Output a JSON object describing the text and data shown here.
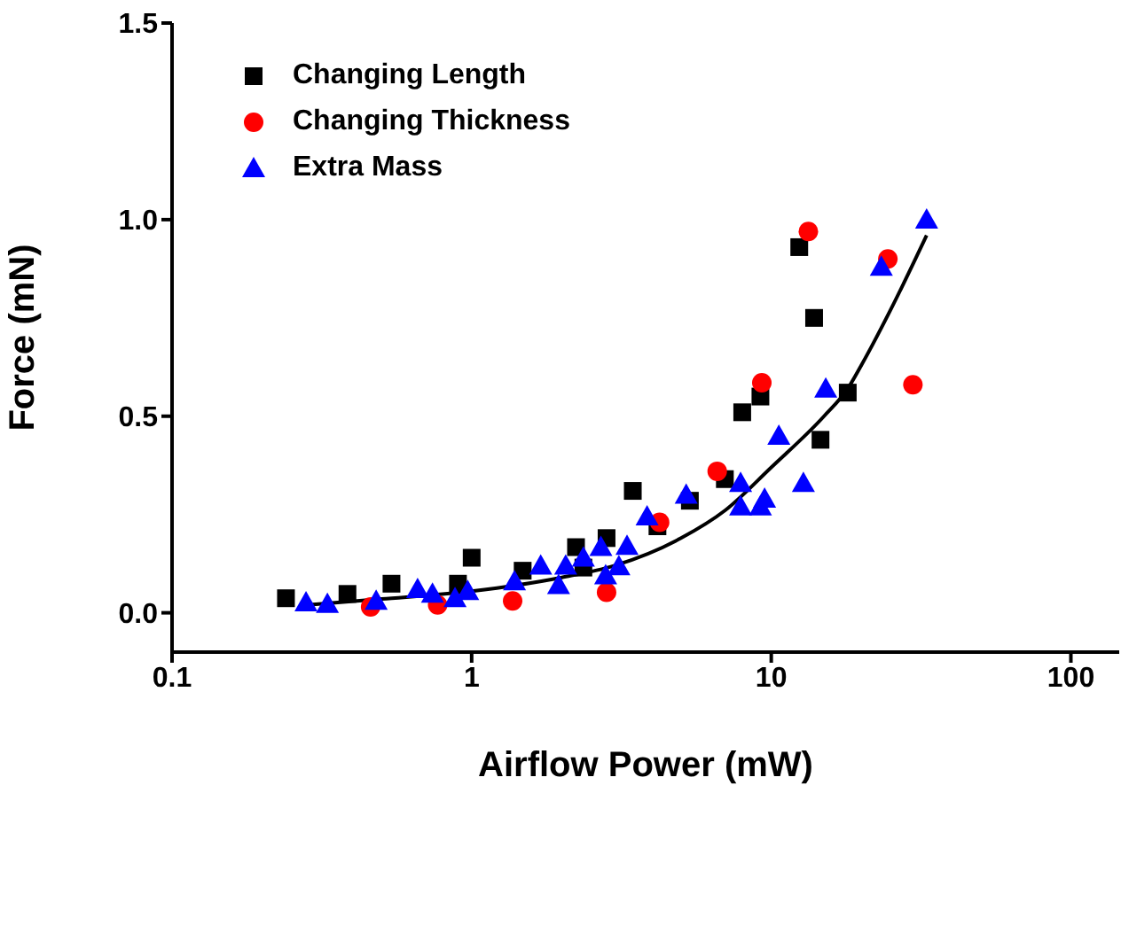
{
  "chart_data": {
    "type": "scatter",
    "xlabel": "Airflow Power (mW)",
    "ylabel": "Force (mN)",
    "log": "x",
    "xlim": [
      0.1,
      145
    ],
    "xticks": [
      0.1,
      1,
      10,
      100
    ],
    "ylim": [
      -0.1,
      1.5
    ],
    "yticks": [
      {
        "value": 0,
        "label": "0.0"
      },
      0.5,
      {
        "value": 1,
        "label": "1.0"
      },
      1.5
    ],
    "grid": false,
    "legend": "top left",
    "series": [
      {
        "name": "Changing Length",
        "color": "#000000",
        "marker": "square",
        "x": [
          0.24,
          0.385,
          0.54,
          0.9,
          1.0,
          1.48,
          2.23,
          2.36,
          2.82,
          3.45,
          4.17,
          5.35,
          7.0,
          8.0,
          9.2,
          12.4,
          13.9,
          14.6,
          18.0
        ],
        "values": [
          0.037,
          0.048,
          0.074,
          0.074,
          0.14,
          0.107,
          0.167,
          0.115,
          0.19,
          0.31,
          0.22,
          0.285,
          0.34,
          0.51,
          0.55,
          0.93,
          0.75,
          0.44,
          0.56
        ]
      },
      {
        "name": "Changing Thickness",
        "color": "#ff0000",
        "marker": "circle",
        "x": [
          0.46,
          0.77,
          1.37,
          2.82,
          4.24,
          6.6,
          9.3,
          13.3,
          24.5,
          29.7
        ],
        "values": [
          0.015,
          0.02,
          0.03,
          0.052,
          0.23,
          0.36,
          0.585,
          0.97,
          0.9,
          0.58
        ]
      },
      {
        "name": "Extra Mass",
        "color": "#0000ff",
        "marker": "triangle",
        "x": [
          0.28,
          0.33,
          0.48,
          0.66,
          0.74,
          0.88,
          0.97,
          1.39,
          1.7,
          1.95,
          2.06,
          2.36,
          2.7,
          2.8,
          3.1,
          3.3,
          3.85,
          5.2,
          7.9,
          7.9,
          9.2,
          9.5,
          10.6,
          12.8,
          15.2,
          23.3,
          33
        ],
        "values": [
          0.026,
          0.022,
          0.03,
          0.06,
          0.048,
          0.037,
          0.055,
          0.08,
          0.12,
          0.07,
          0.12,
          0.14,
          0.167,
          0.095,
          0.118,
          0.17,
          0.245,
          0.3,
          0.33,
          0.27,
          0.27,
          0.29,
          0.45,
          0.33,
          0.57,
          0.88,
          1.0
        ]
      },
      {
        "type": "line",
        "color": "#000000",
        "marker": "none",
        "line_style": "solid",
        "x": [
          0.28,
          0.5,
          1,
          2,
          3,
          5,
          7,
          10,
          15,
          18,
          20,
          25,
          33
        ],
        "values": [
          0.02,
          0.035,
          0.055,
          0.09,
          0.12,
          0.19,
          0.26,
          0.37,
          0.5,
          0.57,
          0.63,
          0.77,
          0.96
        ]
      }
    ]
  }
}
